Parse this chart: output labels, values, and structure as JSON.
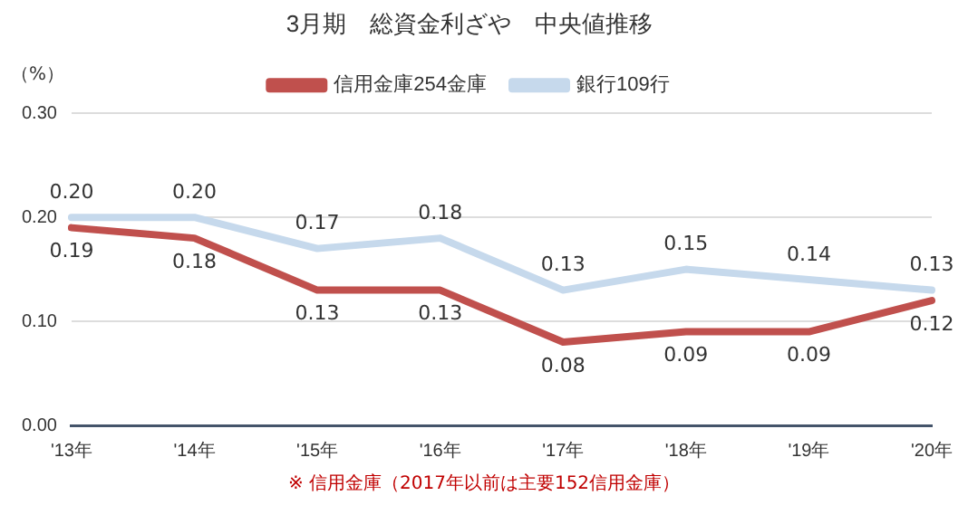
{
  "chart_data": {
    "type": "line",
    "title": "3月期　総資金利ざや　中央値推移",
    "ylabel": "（%）",
    "categories": [
      "'13年",
      "'14年",
      "'15年",
      "'16年",
      "'17年",
      "'18年",
      "'19年",
      "'20年"
    ],
    "series": [
      {
        "name": "信用金庫254金庫",
        "color": "#c0504d",
        "values": [
          0.19,
          0.18,
          0.13,
          0.13,
          0.08,
          0.09,
          0.09,
          0.12
        ],
        "value_labels": [
          "0.19",
          "0.18",
          "0.13",
          "0.13",
          "0.08",
          "0.09",
          "0.09",
          "0.12"
        ]
      },
      {
        "name": "銀行109行",
        "color": "#c6d9ec",
        "values": [
          0.2,
          0.2,
          0.17,
          0.18,
          0.13,
          0.15,
          0.14,
          0.13
        ],
        "value_labels": [
          "0.20",
          "0.20",
          "0.17",
          "0.18",
          "0.13",
          "0.15",
          "0.14",
          "0.13"
        ]
      }
    ],
    "ylim": [
      0,
      0.3
    ],
    "yticks": [
      {
        "value": 0,
        "label": "0.00"
      },
      {
        "value": 0.1,
        "label": "0.10"
      },
      {
        "value": 0.2,
        "label": "0.20"
      },
      {
        "value": 0.3,
        "label": "0.30"
      }
    ],
    "grid": "y",
    "legend": "top",
    "marker": "none",
    "line_style": "solid",
    "annotations": [
      "※ 信用金庫（2017年以前は主要152信用金庫）"
    ]
  }
}
